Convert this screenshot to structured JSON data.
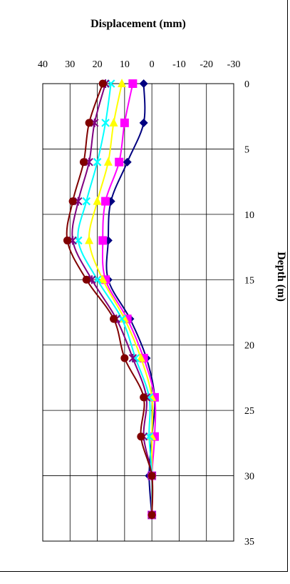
{
  "chart_data": {
    "type": "line",
    "title": "Displacement (mm)",
    "xlabel": "Displacement (mm)",
    "ylabel": "Depth (m)",
    "x_axis": {
      "min": -30,
      "max": 40,
      "reversed": true,
      "position": "top",
      "ticks": [
        40,
        30,
        20,
        10,
        0,
        -10,
        -20,
        -30
      ]
    },
    "y_axis": {
      "min": 0,
      "max": 35,
      "reversed": true,
      "position": "right",
      "ticks": [
        0,
        5,
        10,
        15,
        20,
        25,
        30,
        35
      ]
    },
    "grid": {
      "vertical": true,
      "horizontal": true
    },
    "depths": [
      0,
      3,
      6,
      9,
      12,
      15,
      18,
      21,
      24,
      27,
      30,
      33
    ],
    "series": [
      {
        "color": "#000080",
        "marker": "diamond",
        "values": [
          3,
          3,
          9,
          15,
          16,
          16,
          8,
          2,
          -1,
          0,
          1,
          0
        ]
      },
      {
        "color": "#ff00ff",
        "marker": "square",
        "values": [
          7,
          10,
          12,
          17,
          18,
          17,
          9,
          3,
          -1,
          -1,
          0,
          0
        ]
      },
      {
        "color": "#ffff00",
        "marker": "triangle",
        "values": [
          11,
          14,
          16,
          20,
          23,
          18,
          10,
          4,
          0,
          0,
          0,
          0
        ]
      },
      {
        "color": "#00ffff",
        "marker": "x",
        "values": [
          15,
          17,
          20,
          24,
          27,
          20,
          11,
          6,
          1,
          1,
          0,
          0
        ]
      },
      {
        "color": "#800080",
        "marker": "asterisk",
        "values": [
          17,
          21,
          23,
          27,
          29,
          22,
          13,
          7,
          2,
          3,
          0,
          0
        ]
      },
      {
        "color": "#800000",
        "marker": "circle",
        "values": [
          18,
          23,
          25,
          29,
          31,
          24,
          14,
          10,
          3,
          4,
          0,
          0
        ]
      }
    ]
  }
}
